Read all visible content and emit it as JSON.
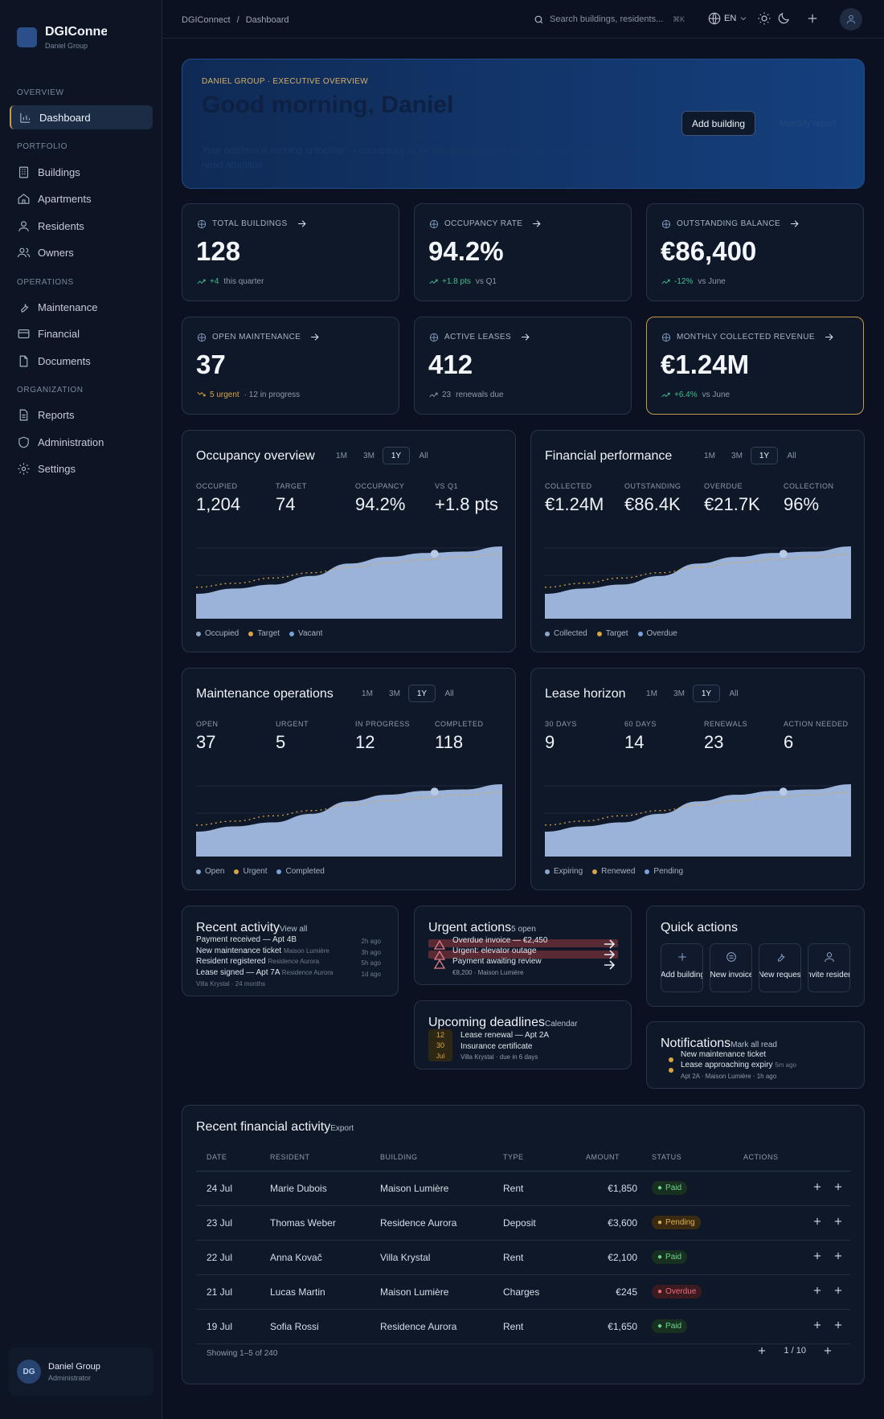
{
  "sidebar": {
    "brand": "DGIConnect",
    "brand_sub": "Daniel Group",
    "sections": [
      "OVERVIEW",
      "PORTFOLIO",
      "OPERATIONS",
      "ORGANIZATION"
    ],
    "items": [
      {
        "label": "Dashboard",
        "icon": "chart-icon",
        "active": true
      },
      {
        "label": "Buildings",
        "icon": "building-icon"
      },
      {
        "label": "Apartments",
        "icon": "home-icon"
      },
      {
        "label": "Residents",
        "icon": "user-icon"
      },
      {
        "label": "Owners",
        "icon": "users-icon"
      },
      {
        "label": "Maintenance",
        "icon": "wrench-icon"
      },
      {
        "label": "Financial",
        "icon": "card-icon"
      },
      {
        "label": "Documents",
        "icon": "document-icon"
      },
      {
        "label": "Reports",
        "icon": "report-icon"
      },
      {
        "label": "Administration",
        "icon": "shield-icon"
      },
      {
        "label": "Settings",
        "icon": "gear-icon"
      }
    ],
    "user": {
      "initials": "DG",
      "name": "Daniel Group",
      "role": "Administrator"
    }
  },
  "topbar": {
    "breadcrumb": [
      "DGIConnect",
      "/",
      "Dashboard"
    ],
    "search_placeholder": "Search buildings, residents...",
    "shortcut": "⌘K",
    "lang": "EN"
  },
  "hero": {
    "kicker": "DANIEL GROUP · EXECUTIVE OVERVIEW",
    "title": "Good morning, Daniel",
    "text": "Your portfolio is running smoothly — occupancy at 94.2%, collections at 96%, two maintenance items need attention.",
    "primary": "Add building",
    "secondary": "Monthly report"
  },
  "kpis": [
    {
      "label": "TOTAL BUILDINGS",
      "value": "128",
      "delta": "+4",
      "note": "this quarter",
      "trend": "up",
      "icon": "globe-icon"
    },
    {
      "label": "OCCUPANCY RATE",
      "value": "94.2%",
      "delta": "+1.8 pts",
      "note": "vs Q1",
      "trend": "up",
      "icon": "bar-chart-icon"
    },
    {
      "label": "OUTSTANDING BALANCE",
      "value": "€86,400",
      "delta": "-12%",
      "note": "vs June",
      "trend": "down",
      "icon": "balance-icon"
    },
    {
      "label": "OPEN MAINTENANCE",
      "value": "37",
      "delta": "5 urgent",
      "note": "· 12 in progress",
      "trend": "warn",
      "icon": "wrench-icon"
    },
    {
      "label": "ACTIVE LEASES",
      "value": "412",
      "delta": "23",
      "note": "renewals due",
      "trend": "neutral",
      "icon": "pie-icon"
    },
    {
      "label": "MONTHLY COLLECTED REVENUE",
      "value": "€1.24M",
      "delta": "+6.4%",
      "note": "vs June",
      "trend": "up",
      "icon": "trend-icon"
    }
  ],
  "panels": [
    {
      "title": "Occupancy overview",
      "ranges": [
        "1M",
        "3M",
        "1Y",
        "All"
      ],
      "selected": "1Y",
      "metrics": [
        {
          "label": "OCCUPIED",
          "value": "1,204"
        },
        {
          "label": "TARGET",
          "value": "74"
        },
        {
          "label": "OCCUPANCY",
          "value": "94.2%"
        },
        {
          "label": "VS Q1",
          "value": "+1.8 pts"
        }
      ],
      "legend": [
        "Occupied",
        "Target",
        "Vacant"
      ]
    },
    {
      "title": "Financial performance",
      "ranges": [
        "1M",
        "3M",
        "1Y",
        "All"
      ],
      "selected": "1Y",
      "metrics": [
        {
          "label": "COLLECTED",
          "value": "€1.24M"
        },
        {
          "label": "OUTSTANDING",
          "value": "€86.4K"
        },
        {
          "label": "OVERDUE",
          "value": "€21.7K"
        },
        {
          "label": "COLLECTION",
          "value": "96%"
        }
      ],
      "legend": [
        "Collected",
        "Target",
        "Overdue"
      ]
    },
    {
      "title": "Maintenance operations",
      "ranges": [
        "1M",
        "3M",
        "1Y",
        "All"
      ],
      "selected": "1Y",
      "metrics": [
        {
          "label": "OPEN",
          "value": "37"
        },
        {
          "label": "URGENT",
          "value": "5"
        },
        {
          "label": "IN PROGRESS",
          "value": "12"
        },
        {
          "label": "COMPLETED",
          "value": "118"
        }
      ],
      "legend": [
        "Open",
        "Urgent",
        "Completed"
      ]
    },
    {
      "title": "Lease horizon",
      "ranges": [
        "1M",
        "3M",
        "1Y",
        "All"
      ],
      "selected": "1Y",
      "metrics": [
        {
          "label": "30 DAYS",
          "value": "9"
        },
        {
          "label": "60 DAYS",
          "value": "14"
        },
        {
          "label": "RENEWALS",
          "value": "23"
        },
        {
          "label": "ACTION NEEDED",
          "value": "6"
        }
      ],
      "legend": [
        "Expiring",
        "Renewed",
        "Pending"
      ]
    }
  ],
  "chart_data": [
    {
      "type": "area",
      "title": "Occupancy overview",
      "series": [
        {
          "name": "Occupied",
          "values": [
            0.28,
            0.36,
            0.42,
            0.55,
            0.74,
            0.84,
            0.9,
            0.92,
            1.0
          ]
        },
        {
          "name": "Target",
          "values": [
            0.38,
            0.44,
            0.52,
            0.6,
            0.68,
            0.75,
            0.8,
            0.84,
            0.88
          ]
        }
      ]
    },
    {
      "type": "area",
      "title": "Financial performance",
      "series": [
        {
          "name": "Collected",
          "values": [
            0.28,
            0.36,
            0.42,
            0.55,
            0.74,
            0.84,
            0.9,
            0.92,
            1.0
          ]
        },
        {
          "name": "Target",
          "values": [
            0.38,
            0.44,
            0.52,
            0.6,
            0.68,
            0.75,
            0.8,
            0.84,
            0.88
          ]
        }
      ]
    },
    {
      "type": "area",
      "title": "Maintenance operations",
      "series": [
        {
          "name": "Completed",
          "values": [
            0.28,
            0.36,
            0.42,
            0.55,
            0.74,
            0.84,
            0.9,
            0.92,
            1.0
          ]
        },
        {
          "name": "Open",
          "values": [
            0.38,
            0.44,
            0.52,
            0.6,
            0.68,
            0.75,
            0.8,
            0.84,
            0.88
          ]
        }
      ]
    },
    {
      "type": "area",
      "title": "Lease horizon",
      "series": [
        {
          "name": "Pending",
          "values": [
            0.28,
            0.36,
            0.42,
            0.55,
            0.74,
            0.84,
            0.9,
            0.92,
            1.0
          ]
        },
        {
          "name": "Renewed",
          "values": [
            0.38,
            0.44,
            0.52,
            0.6,
            0.68,
            0.75,
            0.8,
            0.84,
            0.88
          ]
        }
      ]
    }
  ],
  "colors": {
    "legend": [
      "#8fa6cc",
      "#d9a441",
      "#7aa0d8"
    ],
    "area": "#9bb3d9",
    "gold": "#c59b4c"
  },
  "recent": {
    "title": "Recent activity",
    "link": "View all",
    "items": [
      {
        "text": "Payment received — Apt 4B",
        "time": "2h ago",
        "meta": "Maison Lumière"
      },
      {
        "text": "New maintenance ticket",
        "time": "3h ago",
        "meta": "Residence Aurora"
      },
      {
        "text": "Resident registered",
        "time": "5h ago",
        "meta": "Residence Aurora"
      },
      {
        "text": "Lease signed — Apt 7A",
        "time": "1d ago",
        "meta": "Villa Krystal · 24 months"
      }
    ]
  },
  "urgent": {
    "title": "Urgent actions",
    "count": "5 open",
    "items": [
      {
        "text": "Overdue invoice — €2,450"
      },
      {
        "text": "Urgent: elevator outage"
      },
      {
        "text": "Payment awaiting review",
        "meta": "€8,200 · Maison Lumière"
      }
    ]
  },
  "deadlines": {
    "title": "Upcoming deadlines",
    "link": "Calendar",
    "date": [
      "12",
      "30",
      "Jul"
    ],
    "items": [
      "Lease renewal — Apt 2A",
      "Insurance certificate"
    ],
    "meta": "Villa Krystal · due in 6 days"
  },
  "quick": {
    "title": "Quick actions",
    "items": [
      {
        "label": "Add building",
        "icon": "plus-icon"
      },
      {
        "label": "New invoice",
        "icon": "invoice-icon"
      },
      {
        "label": "New request",
        "icon": "wrench-icon"
      },
      {
        "label": "Invite resident",
        "icon": "user-add-icon"
      }
    ]
  },
  "notifications": {
    "title": "Notifications",
    "link": "Mark all read",
    "items": [
      {
        "text": "New maintenance ticket",
        "time": "5m ago"
      },
      {
        "text": "Lease approaching expiry"
      }
    ],
    "meta": "Apt 2A · Maison Lumière · 1h ago"
  },
  "finance": {
    "title": "Recent financial activity",
    "link": "Export",
    "columns": [
      "DATE",
      "RESIDENT",
      "BUILDING",
      "TYPE",
      "AMOUNT",
      "STATUS",
      "ACTIONS"
    ],
    "rows": [
      {
        "date": "24 Jul",
        "resident": "Marie Dubois",
        "building": "Maison Lumière",
        "type": "Rent",
        "amount": "€1,850",
        "status": "Paid"
      },
      {
        "date": "23 Jul",
        "resident": "Thomas Weber",
        "building": "Residence Aurora",
        "type": "Deposit",
        "amount": "€3,600",
        "status": "Pending"
      },
      {
        "date": "22 Jul",
        "resident": "Anna Kovač",
        "building": "Villa Krystal",
        "type": "Rent",
        "amount": "€2,100",
        "status": "Paid"
      },
      {
        "date": "21 Jul",
        "resident": "Lucas Martin",
        "building": "Maison Lumière",
        "type": "Charges",
        "amount": "€245",
        "status": "Overdue"
      },
      {
        "date": "19 Jul",
        "resident": "Sofia Rossi",
        "building": "Residence Aurora",
        "type": "Rent",
        "amount": "€1,650",
        "status": "Paid"
      }
    ],
    "showing": "Showing 1–5 of 240",
    "page": "1 / 10"
  }
}
